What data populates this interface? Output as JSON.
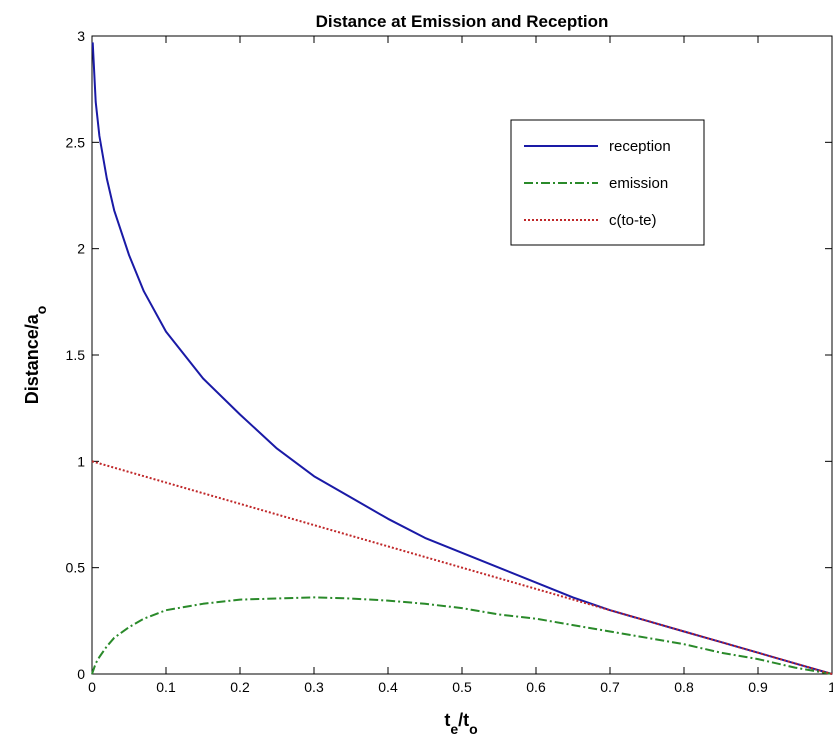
{
  "chart_data": {
    "type": "line",
    "title": "Distance at Emission and Reception",
    "xlabel": {
      "main": "t",
      "sub1": "e",
      "mid": "/t",
      "sub2": "o"
    },
    "ylabel": {
      "main": "Distance/a",
      "sub": "o"
    },
    "xlim": [
      0,
      1
    ],
    "ylim": [
      0,
      3
    ],
    "xticks": [
      0,
      0.1,
      0.2,
      0.3,
      0.4,
      0.5,
      0.6,
      0.7,
      0.8,
      0.9,
      1
    ],
    "xtick_labels": [
      "0",
      "0.1",
      "0.2",
      "0.3",
      "0.4",
      "0.5",
      "0.6",
      "0.7",
      "0.8",
      "0.9",
      "1"
    ],
    "yticks": [
      0,
      0.5,
      1,
      1.5,
      2,
      2.5,
      3
    ],
    "ytick_labels": [
      "0",
      "0.5",
      "1",
      "1.5",
      "2",
      "2.5",
      "3"
    ],
    "grid": false,
    "legend_position": "top-right",
    "series": [
      {
        "name": "reception",
        "color": "#1a1aa6",
        "style": "solid",
        "x": [
          0.001,
          0.005,
          0.01,
          0.02,
          0.03,
          0.05,
          0.07,
          0.1,
          0.15,
          0.2,
          0.25,
          0.3,
          0.35,
          0.4,
          0.45,
          0.5,
          0.55,
          0.6,
          0.65,
          0.7,
          0.75,
          0.8,
          0.85,
          0.9,
          0.95,
          1.0
        ],
        "y": [
          2.97,
          2.69,
          2.53,
          2.33,
          2.18,
          1.97,
          1.8,
          1.61,
          1.39,
          1.22,
          1.06,
          0.93,
          0.83,
          0.73,
          0.64,
          0.57,
          0.5,
          0.43,
          0.36,
          0.3,
          0.25,
          0.2,
          0.15,
          0.1,
          0.05,
          0.0
        ]
      },
      {
        "name": "emission",
        "color": "#2a8a2a",
        "style": "dashdot",
        "x": [
          0.0,
          0.005,
          0.01,
          0.02,
          0.03,
          0.05,
          0.07,
          0.1,
          0.15,
          0.2,
          0.25,
          0.3,
          0.35,
          0.4,
          0.45,
          0.5,
          0.55,
          0.6,
          0.65,
          0.7,
          0.75,
          0.8,
          0.85,
          0.9,
          0.95,
          1.0
        ],
        "y": [
          0.0,
          0.05,
          0.08,
          0.13,
          0.17,
          0.22,
          0.26,
          0.3,
          0.33,
          0.35,
          0.355,
          0.36,
          0.355,
          0.345,
          0.33,
          0.31,
          0.28,
          0.26,
          0.23,
          0.2,
          0.17,
          0.14,
          0.1,
          0.07,
          0.03,
          0.0
        ]
      },
      {
        "name": "c(to-te)",
        "color": "#c0282a",
        "style": "dotted",
        "x": [
          0,
          1
        ],
        "y": [
          1,
          0
        ]
      }
    ]
  }
}
